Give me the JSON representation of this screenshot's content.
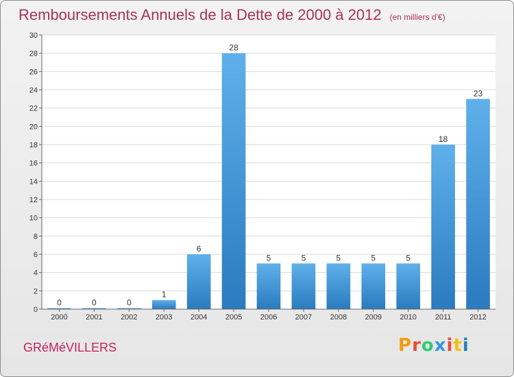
{
  "title": "Remboursements Annuels de la Dette de 2000 à 2012",
  "subtitle": "(en milliers d'€)",
  "commune": "GRéMéVILLERS",
  "logo": {
    "text": "Proxiti",
    "letter_colors": [
      "#f39c12",
      "#e74c3c",
      "#2ecc71",
      "#3498db",
      "#e74c3c",
      "#f1c40f",
      "#2980b9"
    ]
  },
  "colors": {
    "bar_top": "#5fb0ea",
    "bar_bottom": "#2a7bbf",
    "title": "#a6335a"
  },
  "chart_data": {
    "type": "bar",
    "categories": [
      "2000",
      "2001",
      "2002",
      "2003",
      "2004",
      "2005",
      "2006",
      "2007",
      "2008",
      "2009",
      "2010",
      "2011",
      "2012"
    ],
    "values": [
      0,
      0,
      0,
      1,
      6,
      28,
      5,
      5,
      5,
      5,
      5,
      18,
      23
    ],
    "data_labels": [
      "0",
      "0",
      "0",
      "1",
      "6",
      "28",
      "5",
      "5",
      "5",
      "5",
      "5",
      "18",
      "23"
    ],
    "ylim": [
      0,
      30
    ],
    "yticks": [
      0,
      2,
      4,
      6,
      8,
      10,
      12,
      14,
      16,
      18,
      20,
      22,
      24,
      26,
      28,
      30
    ],
    "grid": true,
    "xlabel": "",
    "ylabel": ""
  }
}
